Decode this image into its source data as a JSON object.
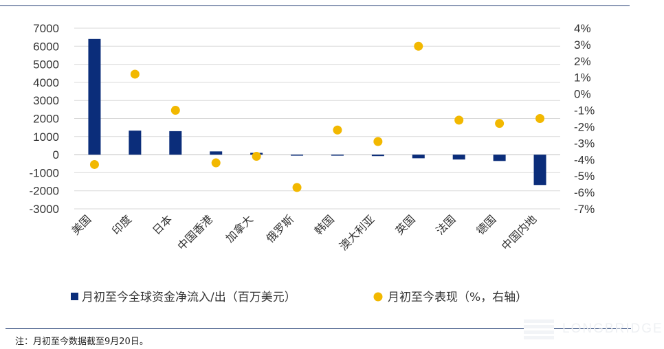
{
  "chart_data": {
    "type": "bar",
    "categories": [
      "美国",
      "印度",
      "日本",
      "中国香港",
      "加拿大",
      "俄罗斯",
      "韩国",
      "澳大利亚",
      "英国",
      "法国",
      "德国",
      "中国内地"
    ],
    "series": [
      {
        "name": "月初至今全球资金净流入/出（百万美元）",
        "type": "bar",
        "axis": "left",
        "color": "#0b2d7a",
        "values": [
          6400,
          1330,
          1300,
          180,
          100,
          -30,
          -30,
          -80,
          -200,
          -270,
          -350,
          -1680
        ]
      },
      {
        "name": "月初至今表现（%，右轴）",
        "type": "scatter",
        "axis": "right",
        "color": "#f2b800",
        "values": [
          -4.3,
          1.2,
          -1.0,
          -4.2,
          -3.8,
          -5.7,
          -2.2,
          -2.9,
          2.9,
          -1.6,
          -1.8,
          -1.5
        ]
      }
    ],
    "y_left": {
      "ylim": [
        -3000,
        7000
      ],
      "ticks": [
        7000,
        6000,
        5000,
        4000,
        3000,
        2000,
        1000,
        0,
        -1000,
        -2000,
        -3000
      ]
    },
    "y_right": {
      "ylim": [
        -7,
        4
      ],
      "ticks": [
        "4%",
        "3%",
        "2%",
        "1%",
        "0%",
        "-1%",
        "-2%",
        "-3%",
        "-4%",
        "-5%",
        "-6%",
        "-7%"
      ]
    },
    "grid": true,
    "legend_position": "bottom"
  },
  "note": "注：月初至今数据截至9月20日。",
  "watermark": "LONGBRIDGE"
}
